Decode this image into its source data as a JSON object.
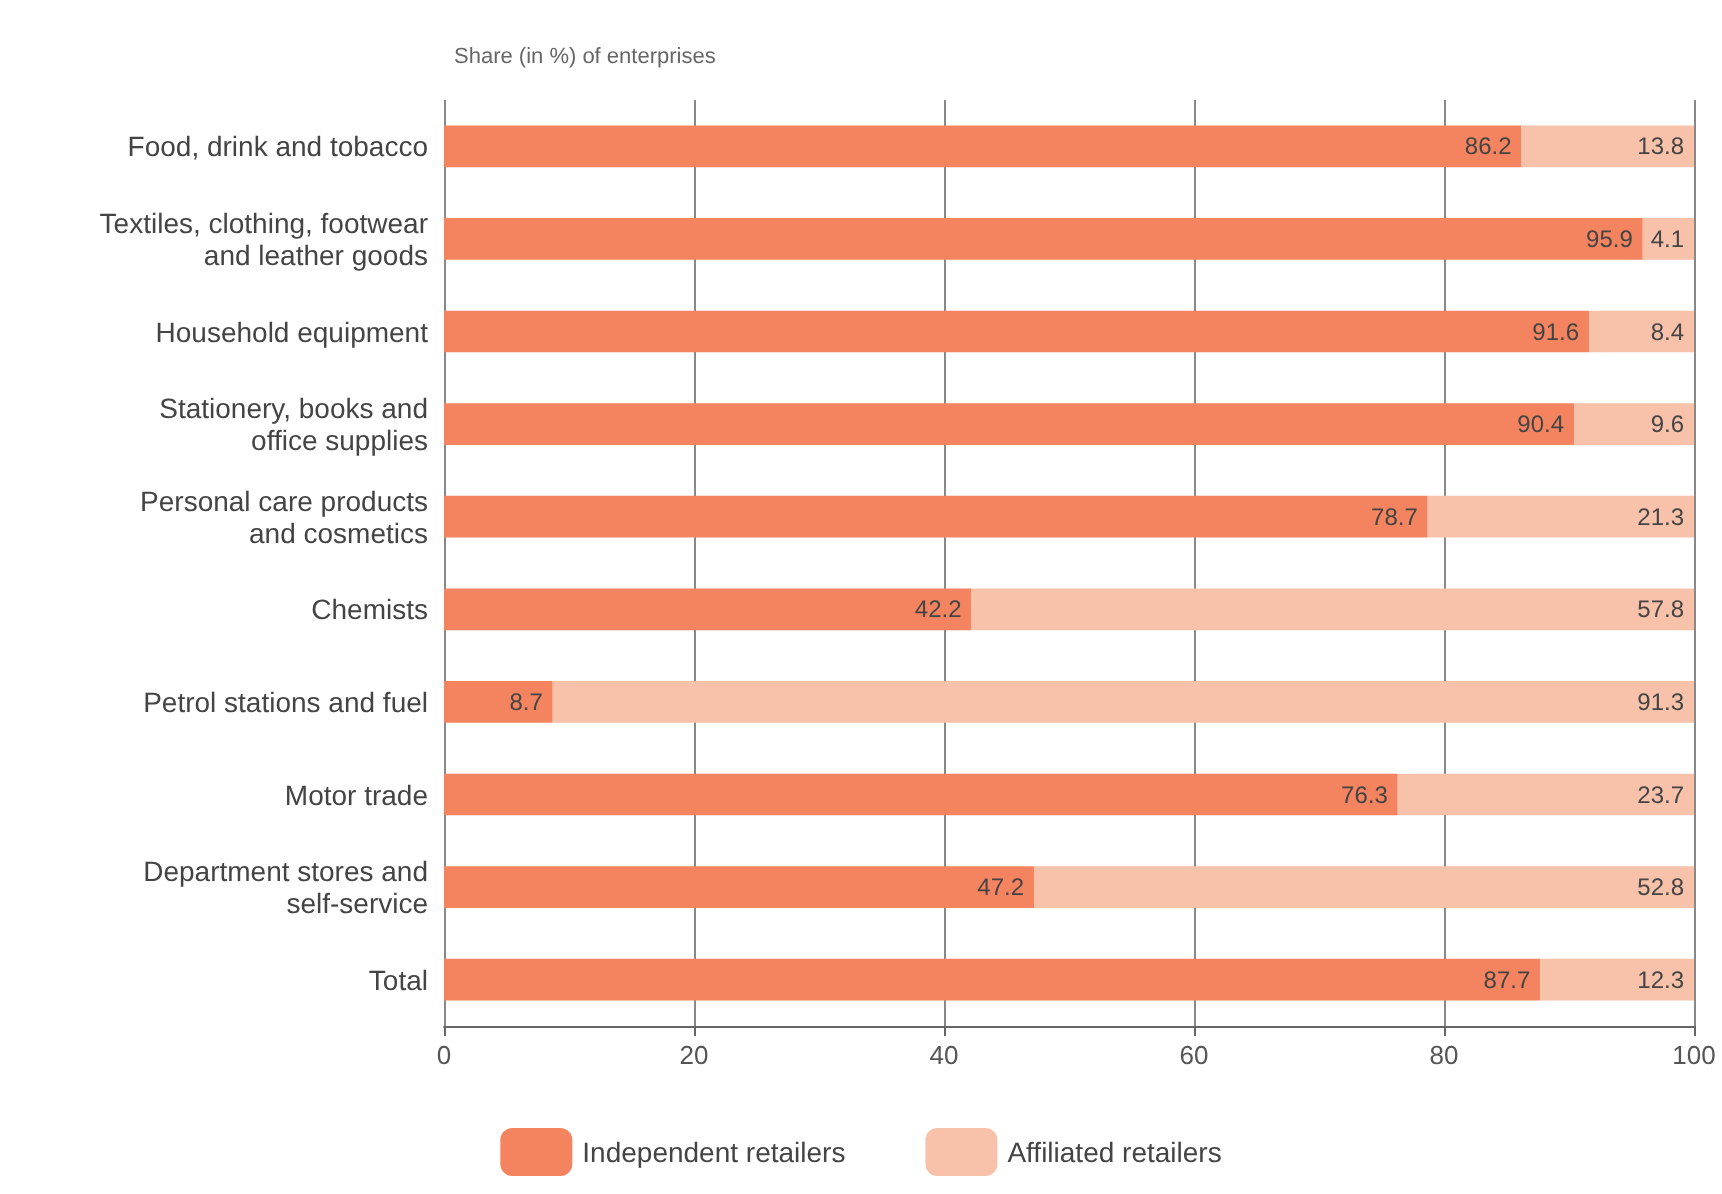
{
  "chart_data": {
    "type": "bar",
    "orientation": "horizontal",
    "stacked": true,
    "subtitle": "Share (in %) of enterprises",
    "categories": [
      "Food, drink and tobacco",
      "Textiles, clothing, footwear\nand leather goods",
      "Household equipment",
      "Stationery, books and\noffice supplies",
      "Personal care products\nand cosmetics",
      "Chemists",
      "Petrol stations and fuel",
      "Motor trade",
      "Department stores and\nself-service",
      "Total"
    ],
    "series": [
      {
        "name": "Independent retailers",
        "color": "#f4845f",
        "values": [
          86.2,
          95.9,
          91.6,
          90.4,
          78.7,
          42.2,
          8.7,
          76.3,
          47.2,
          87.7
        ]
      },
      {
        "name": "Affiliated retailers",
        "color": "#f8c2aa",
        "values": [
          13.8,
          4.1,
          8.4,
          9.6,
          21.3,
          57.8,
          91.3,
          23.7,
          52.8,
          12.3
        ]
      }
    ],
    "xlim": [
      0,
      100
    ],
    "xticks": [
      0,
      20,
      40,
      60,
      80,
      100
    ],
    "grid": "x",
    "legend": "bottom",
    "data_labels": true
  }
}
